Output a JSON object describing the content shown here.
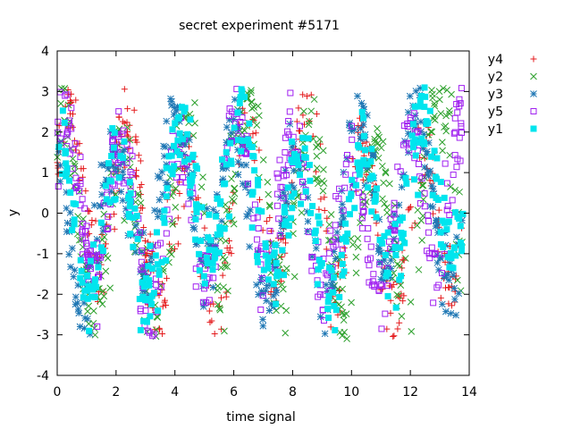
{
  "chart_data": {
    "type": "scatter",
    "title": "secret experiment #5171",
    "xlabel": "time signal",
    "ylabel": "y",
    "xlim": [
      0,
      14
    ],
    "ylim": [
      -4,
      4
    ],
    "xticks": [
      "0",
      "2",
      "4",
      "6",
      "8",
      "10",
      "12",
      "14"
    ],
    "yticks": [
      "-4",
      "-3",
      "-2",
      "-1",
      "0",
      "1",
      "2",
      "3",
      "4"
    ],
    "grid": false,
    "legend_position": "outside-top-right",
    "x_range_data": [
      0.0,
      13.8
    ],
    "series": [
      {
        "name": "y4",
        "color": "#e41a1c",
        "marker": "plus",
        "amplitude": 2.0,
        "freq": 1.65,
        "phase": 0.3,
        "noise": 0.55
      },
      {
        "name": "y2",
        "color": "#2ca02c",
        "marker": "cross",
        "amplitude": 2.1,
        "freq": 1.55,
        "phase": 1.2,
        "noise": 0.6
      },
      {
        "name": "y3",
        "color": "#1f77b4",
        "marker": "star",
        "amplitude": 1.9,
        "freq": 1.6,
        "phase": 2.0,
        "noise": 0.5
      },
      {
        "name": "y5",
        "color": "#a020f0",
        "marker": "open-square",
        "amplitude": 1.8,
        "freq": 1.7,
        "phase": 0.8,
        "noise": 0.55
      },
      {
        "name": "y1",
        "color": "#00e5ee",
        "marker": "filled-square",
        "amplitude": 1.7,
        "freq": 1.6,
        "phase": 1.5,
        "noise": 0.55
      }
    ],
    "points_per_series": 420,
    "baseline_offset": 0.1
  }
}
